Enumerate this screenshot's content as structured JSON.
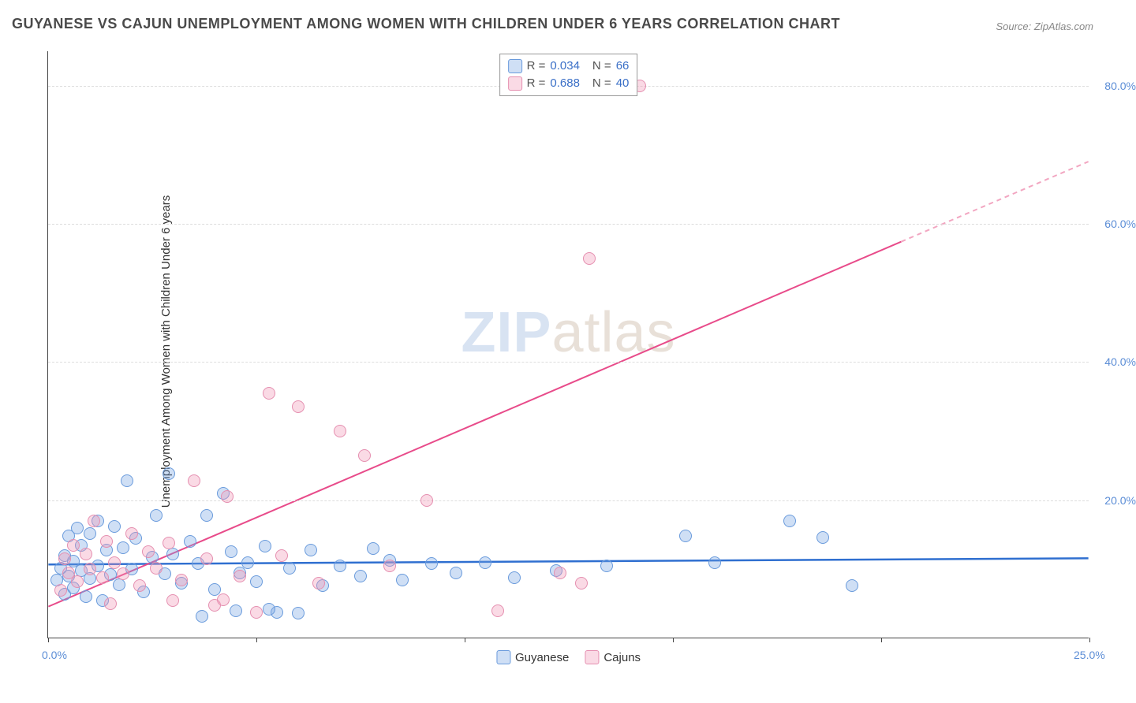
{
  "title": "GUYANESE VS CAJUN UNEMPLOYMENT AMONG WOMEN WITH CHILDREN UNDER 6 YEARS CORRELATION CHART",
  "source_text": "Source: ZipAtlas.com",
  "yaxis_label": "Unemployment Among Women with Children Under 6 years",
  "watermark": {
    "main": "ZIP",
    "sub": "atlas"
  },
  "chart": {
    "type": "scatter",
    "xlim": [
      0,
      25
    ],
    "ylim": [
      0,
      85
    ],
    "x_ticks": [
      0,
      5,
      10,
      15,
      20,
      25
    ],
    "x_tick_labels": [
      "0.0%",
      "",
      "",
      "",
      "",
      "25.0%"
    ],
    "y_ticks": [
      20,
      40,
      60,
      80
    ],
    "y_tick_labels": [
      "20.0%",
      "40.0%",
      "60.0%",
      "80.0%"
    ],
    "grid_color": "#dddddd",
    "background_color": "#ffffff",
    "axis_color": "#444444",
    "marker_radius": 8,
    "marker_stroke_width": 1.5,
    "series": [
      {
        "name": "Guyanese",
        "fill_color": "rgba(118,164,225,0.35)",
        "stroke_color": "#6a9bdc",
        "trend_color": "#2f6fd0",
        "trend_width": 2.5,
        "trend_dash": "none",
        "r_value": "0.034",
        "n_value": "66",
        "trend": {
          "x1": 0,
          "y1": 10.6,
          "x2": 25,
          "y2": 11.5,
          "dash_from_x": null
        },
        "points": [
          [
            0.2,
            8.5
          ],
          [
            0.3,
            10.2
          ],
          [
            0.4,
            6.4
          ],
          [
            0.4,
            12.0
          ],
          [
            0.5,
            9.0
          ],
          [
            0.5,
            14.8
          ],
          [
            0.6,
            7.3
          ],
          [
            0.6,
            11.2
          ],
          [
            0.7,
            16.0
          ],
          [
            0.8,
            9.8
          ],
          [
            0.8,
            13.5
          ],
          [
            0.9,
            6.0
          ],
          [
            1.0,
            15.2
          ],
          [
            1.0,
            8.7
          ],
          [
            1.2,
            17.0
          ],
          [
            1.2,
            10.5
          ],
          [
            1.3,
            5.5
          ],
          [
            1.4,
            12.8
          ],
          [
            1.5,
            9.2
          ],
          [
            1.6,
            16.2
          ],
          [
            1.7,
            7.8
          ],
          [
            1.8,
            13.1
          ],
          [
            1.9,
            22.8
          ],
          [
            2.0,
            10.0
          ],
          [
            2.1,
            14.5
          ],
          [
            2.3,
            6.7
          ],
          [
            2.5,
            11.7
          ],
          [
            2.6,
            17.8
          ],
          [
            2.8,
            9.3
          ],
          [
            2.9,
            23.8
          ],
          [
            3.0,
            12.2
          ],
          [
            3.2,
            8.0
          ],
          [
            3.4,
            14.0
          ],
          [
            3.6,
            10.8
          ],
          [
            3.8,
            17.8
          ],
          [
            4.0,
            7.1
          ],
          [
            4.2,
            21.0
          ],
          [
            4.4,
            12.5
          ],
          [
            4.6,
            9.5
          ],
          [
            4.8,
            11.0
          ],
          [
            5.0,
            8.2
          ],
          [
            5.2,
            13.3
          ],
          [
            5.5,
            3.8
          ],
          [
            5.8,
            10.2
          ],
          [
            6.0,
            3.6
          ],
          [
            6.3,
            12.8
          ],
          [
            6.6,
            7.6
          ],
          [
            7.0,
            10.5
          ],
          [
            7.5,
            9.0
          ],
          [
            7.8,
            13.0
          ],
          [
            8.2,
            11.3
          ],
          [
            8.5,
            8.5
          ],
          [
            9.2,
            10.8
          ],
          [
            9.8,
            9.5
          ],
          [
            10.5,
            11.0
          ],
          [
            11.2,
            8.8
          ],
          [
            12.2,
            9.8
          ],
          [
            13.4,
            10.5
          ],
          [
            15.3,
            14.8
          ],
          [
            16.0,
            11.0
          ],
          [
            17.8,
            17.0
          ],
          [
            18.6,
            14.6
          ],
          [
            19.3,
            7.6
          ],
          [
            3.7,
            3.2
          ],
          [
            4.5,
            4.0
          ],
          [
            5.3,
            4.2
          ]
        ]
      },
      {
        "name": "Cajuns",
        "fill_color": "rgba(240,150,180,0.35)",
        "stroke_color": "#e58fb0",
        "trend_color": "#e84b8a",
        "trend_width": 2,
        "trend_dash_color": "#f2a6c1",
        "r_value": "0.688",
        "n_value": "40",
        "trend": {
          "x1": 0,
          "y1": 4.5,
          "x2": 25,
          "y2": 69.0,
          "dash_from_x": 20.5
        },
        "points": [
          [
            0.3,
            7.0
          ],
          [
            0.4,
            11.5
          ],
          [
            0.5,
            9.5
          ],
          [
            0.6,
            13.5
          ],
          [
            0.7,
            8.2
          ],
          [
            0.9,
            12.2
          ],
          [
            1.0,
            10.0
          ],
          [
            1.1,
            17.0
          ],
          [
            1.3,
            8.8
          ],
          [
            1.4,
            14.0
          ],
          [
            1.6,
            11.0
          ],
          [
            1.8,
            9.3
          ],
          [
            2.0,
            15.2
          ],
          [
            2.2,
            7.6
          ],
          [
            2.4,
            12.5
          ],
          [
            2.6,
            10.2
          ],
          [
            2.9,
            13.8
          ],
          [
            3.2,
            8.5
          ],
          [
            3.5,
            22.8
          ],
          [
            3.8,
            11.5
          ],
          [
            4.0,
            4.8
          ],
          [
            4.3,
            20.5
          ],
          [
            4.6,
            9.0
          ],
          [
            5.0,
            3.8
          ],
          [
            5.3,
            35.5
          ],
          [
            5.6,
            12.0
          ],
          [
            6.0,
            33.5
          ],
          [
            6.5,
            8.0
          ],
          [
            7.0,
            30.0
          ],
          [
            7.6,
            26.5
          ],
          [
            8.2,
            10.5
          ],
          [
            9.1,
            20.0
          ],
          [
            10.8,
            4.0
          ],
          [
            12.3,
            9.5
          ],
          [
            12.8,
            8.0
          ],
          [
            13.0,
            55.0
          ],
          [
            14.2,
            80.0
          ],
          [
            3.0,
            5.5
          ],
          [
            4.2,
            5.6
          ],
          [
            1.5,
            5.0
          ]
        ]
      }
    ]
  },
  "legend_bottom": [
    {
      "label": "Guyanese",
      "swatch_fill": "rgba(118,164,225,0.35)",
      "swatch_stroke": "#6a9bdc"
    },
    {
      "label": "Cajuns",
      "swatch_fill": "rgba(240,150,180,0.35)",
      "swatch_stroke": "#e58fb0"
    }
  ]
}
